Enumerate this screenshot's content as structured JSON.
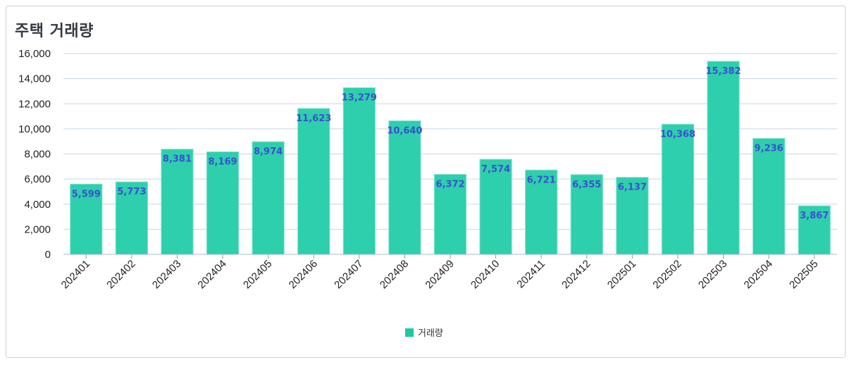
{
  "title": "주택 거래량",
  "colors": {
    "bar": "#2ecfac",
    "bar_stroke": "#7fe3cc",
    "grid": "#c8d6e5",
    "label": "#3b4fd1"
  },
  "chart_data": {
    "type": "bar",
    "title": "주택 거래량",
    "xlabel": "",
    "ylabel": "",
    "ylim": [
      0,
      16000
    ],
    "yticks": [
      "0",
      "2,000",
      "4,000",
      "6,000",
      "8,000",
      "10,000",
      "12,000",
      "14,000",
      "16,000"
    ],
    "grid": true,
    "legend_position": "bottom",
    "categories": [
      "202401",
      "202402",
      "202403",
      "202404",
      "202405",
      "202406",
      "202407",
      "202408",
      "202409",
      "202410",
      "202411",
      "202412",
      "202501",
      "202502",
      "202503",
      "202504",
      "202505"
    ],
    "series": [
      {
        "name": "거래량",
        "values": [
          5599,
          5773,
          8381,
          8169,
          8974,
          11623,
          13279,
          10640,
          6372,
          7574,
          6721,
          6355,
          6137,
          10368,
          15382,
          9236,
          3867
        ],
        "labels": [
          "5,599",
          "5,773",
          "8,381",
          "8,169",
          "8,974",
          "11,623",
          "13,279",
          "10,640",
          "6,372",
          "7,574",
          "6,721",
          "6,355",
          "6,137",
          "10,368",
          "15,382",
          "9,236",
          "3,867"
        ]
      }
    ]
  }
}
